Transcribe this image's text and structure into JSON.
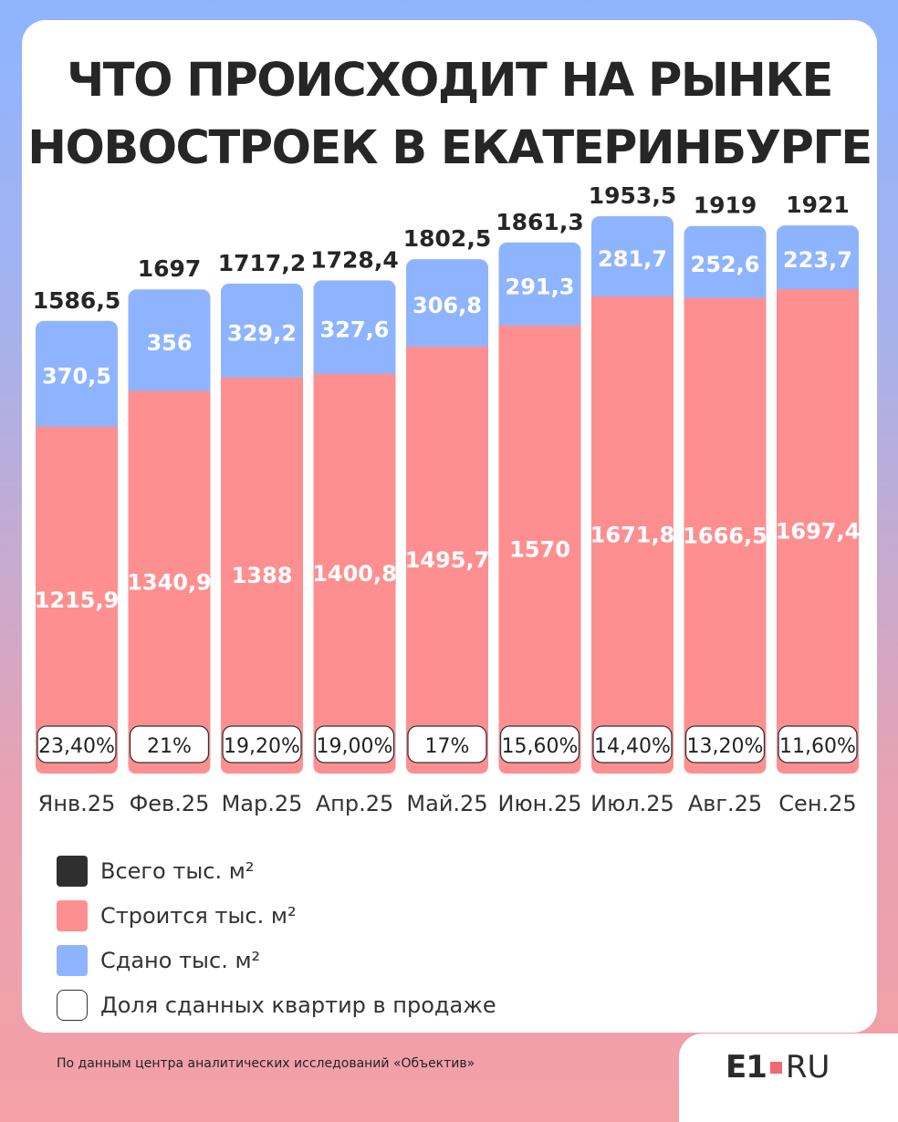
{
  "title_lines": [
    "ЧТО ПРОИСХОДИТ НА РЫНКЕ",
    "НОВОСТРОЕК В ЕКАТЕРИНБУРГЕ"
  ],
  "colors": {
    "built": "#fe8f91",
    "delivered": "#8fb4ff",
    "total": "#2f2f2f",
    "share": "#ffffff"
  },
  "chart_data": {
    "type": "bar",
    "stacked": true,
    "categories": [
      "Янв.25",
      "Фев.25",
      "Мар.25",
      "Апр.25",
      "Май.25",
      "Июн.25",
      "Июл.25",
      "Авг.25",
      "Сен.25"
    ],
    "series": [
      {
        "name": "Строится тыс. м²",
        "values": [
          1215.9,
          1340.9,
          1388,
          1400.8,
          1495.7,
          1570,
          1671.8,
          1666.5,
          1697.4
        ],
        "labels": [
          "1215,9",
          "1340,9",
          "1388",
          "1400,8",
          "1495,7",
          "1570",
          "1671,8",
          "1666,5",
          "1697,4"
        ]
      },
      {
        "name": "Сдано тыс. м²",
        "values": [
          370.5,
          356,
          329.2,
          327.6,
          306.8,
          291.3,
          281.7,
          252.6,
          223.7
        ],
        "labels": [
          "370,5",
          "356",
          "329,2",
          "327,6",
          "306,8",
          "291,3",
          "281,7",
          "252,6",
          "223,7"
        ]
      }
    ],
    "totals": {
      "name": "Всего тыс. м²",
      "values": [
        1586.5,
        1697,
        1717.2,
        1728.4,
        1802.5,
        1861.3,
        1953.5,
        1919,
        1921
      ],
      "labels": [
        "1586,5",
        "1697",
        "1717,2",
        "1728,4",
        "1802,5",
        "1861,3",
        "1953,5",
        "1919",
        "1921"
      ]
    },
    "share": {
      "name": "Доля сданных квартир в продаже",
      "labels": [
        "23,40%",
        "21%",
        "19,20%",
        "19,00%",
        "17%",
        "15,60%",
        "14,40%",
        "13,20%",
        "11,60%"
      ]
    }
  },
  "legend": [
    {
      "label": "Всего тыс. м²",
      "color": "#2f2f2f"
    },
    {
      "label": "Строится тыс. м²",
      "color": "#fe8f91"
    },
    {
      "label": "Сдано тыс. м²",
      "color": "#8fb4ff"
    },
    {
      "label": "Доля сданных квартир в продаже",
      "color": "#ffffff"
    }
  ],
  "source": "По данным центра аналитических исследований «Объектив»",
  "logo": {
    "main": "E1",
    "suffix": "RU"
  }
}
